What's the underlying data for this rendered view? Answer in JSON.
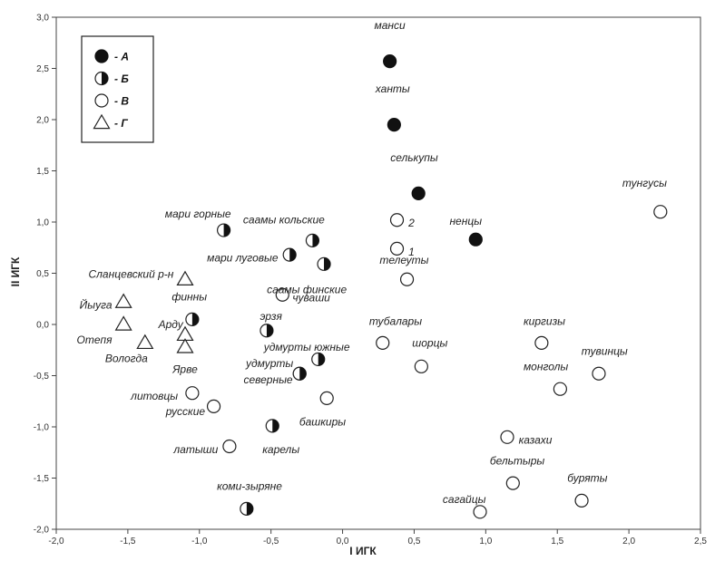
{
  "chart_data": {
    "type": "scatter",
    "xlabel": "I ИГК",
    "ylabel": "II ИГК",
    "xlim": [
      -2.0,
      2.5
    ],
    "ylim": [
      -2.0,
      3.0
    ],
    "xticks": [
      "-2,0",
      "-1,5",
      "-1,0",
      "-0,5",
      "0,0",
      "0,5",
      "1,0",
      "1,5",
      "2,0",
      "2,5"
    ],
    "yticks": [
      "-2,0",
      "-1,5",
      "-1,0",
      "-0,5",
      "0,0",
      "0,5",
      "1,0",
      "1,5",
      "2,0",
      "2,5",
      "3,0"
    ],
    "grid": false,
    "legend_position": "top-left",
    "legend": [
      {
        "marker": "filled",
        "label": "- А"
      },
      {
        "marker": "half",
        "label": "- Б"
      },
      {
        "marker": "open",
        "label": "- В"
      },
      {
        "marker": "triangle",
        "label": "- Г"
      }
    ],
    "points": [
      {
        "label": "манси",
        "x": 0.33,
        "y": 2.57,
        "marker": "filled",
        "lx": 0.0,
        "ly": 0.35,
        "anchor": "middle"
      },
      {
        "label": "ханты",
        "x": 0.36,
        "y": 1.95,
        "marker": "filled",
        "lx": -0.01,
        "ly": 0.35,
        "anchor": "middle"
      },
      {
        "label": "селькупы",
        "x": 0.53,
        "y": 1.28,
        "marker": "filled",
        "lx": -0.03,
        "ly": 0.35,
        "anchor": "middle"
      },
      {
        "label": "ненцы",
        "x": 0.93,
        "y": 0.83,
        "marker": "filled",
        "lx": -0.07,
        "ly": 0.18,
        "anchor": "middle"
      },
      {
        "label": "тунгусы",
        "x": 2.22,
        "y": 1.1,
        "marker": "open",
        "lx": -0.11,
        "ly": 0.28,
        "anchor": "middle"
      },
      {
        "label": "2",
        "x": 0.38,
        "y": 1.02,
        "marker": "open",
        "lx": 0.08,
        "ly": -0.03,
        "anchor": "start"
      },
      {
        "label": "1",
        "x": 0.38,
        "y": 0.74,
        "marker": "open",
        "lx": 0.08,
        "ly": -0.03,
        "anchor": "start"
      },
      {
        "label": "телеуты",
        "x": 0.45,
        "y": 0.44,
        "marker": "open",
        "lx": -0.02,
        "ly": 0.19,
        "anchor": "middle"
      },
      {
        "label": "мари горные",
        "x": -0.83,
        "y": 0.92,
        "marker": "half",
        "lx": -0.18,
        "ly": 0.16,
        "anchor": "middle"
      },
      {
        "label": "саамы кольские",
        "x": -0.21,
        "y": 0.82,
        "marker": "half",
        "lx": -0.2,
        "ly": 0.2,
        "anchor": "middle"
      },
      {
        "label": "мари луговые",
        "x": -0.37,
        "y": 0.68,
        "marker": "half",
        "lx": -0.08,
        "ly": -0.03,
        "anchor": "end"
      },
      {
        "label": "саамы финские",
        "x": -0.13,
        "y": 0.59,
        "marker": "half",
        "lx": -0.12,
        "ly": -0.25,
        "anchor": "middle"
      },
      {
        "label": "чуваши",
        "x": -0.42,
        "y": 0.29,
        "marker": "open",
        "lx": 0.07,
        "ly": -0.03,
        "anchor": "start"
      },
      {
        "label": "финны",
        "x": -1.05,
        "y": 0.05,
        "marker": "half",
        "lx": -0.02,
        "ly": 0.22,
        "anchor": "middle"
      },
      {
        "label": "эрзя",
        "x": -0.53,
        "y": -0.06,
        "marker": "half",
        "lx": 0.03,
        "ly": 0.14,
        "anchor": "middle"
      },
      {
        "label": "удмурты южные",
        "x": -0.17,
        "y": -0.34,
        "marker": "half",
        "lx": -0.08,
        "ly": 0.12,
        "anchor": "middle"
      },
      {
        "label": "удмурты",
        "x": -0.3,
        "y": -0.48,
        "marker": "half",
        "lx": -0.21,
        "ly": 0.1,
        "anchor": "middle"
      },
      {
        "label": "северные",
        "x": -0.3,
        "y": -0.48,
        "marker": "half",
        "lx": -0.22,
        "ly": -0.06,
        "anchor": "middle"
      },
      {
        "label": "башкиры",
        "x": -0.11,
        "y": -0.72,
        "marker": "open",
        "lx": -0.03,
        "ly": -0.23,
        "anchor": "middle"
      },
      {
        "label": "карелы",
        "x": -0.49,
        "y": -0.99,
        "marker": "half",
        "lx": 0.06,
        "ly": -0.23,
        "anchor": "middle"
      },
      {
        "label": "коми-зыряне",
        "x": -0.67,
        "y": -1.8,
        "marker": "half",
        "lx": 0.02,
        "ly": 0.22,
        "anchor": "middle"
      },
      {
        "label": "тубалары",
        "x": 0.28,
        "y": -0.18,
        "marker": "open",
        "lx": 0.09,
        "ly": 0.21,
        "anchor": "middle"
      },
      {
        "label": "шорцы",
        "x": 0.55,
        "y": -0.41,
        "marker": "open",
        "lx": 0.06,
        "ly": 0.23,
        "anchor": "middle"
      },
      {
        "label": "киргизы",
        "x": 1.39,
        "y": -0.18,
        "marker": "open",
        "lx": 0.02,
        "ly": 0.21,
        "anchor": "middle"
      },
      {
        "label": "монголы",
        "x": 1.52,
        "y": -0.63,
        "marker": "open",
        "lx": -0.1,
        "ly": 0.22,
        "anchor": "middle"
      },
      {
        "label": "тувинцы",
        "x": 1.79,
        "y": -0.48,
        "marker": "open",
        "lx": 0.04,
        "ly": 0.22,
        "anchor": "middle"
      },
      {
        "label": "казахи",
        "x": 1.15,
        "y": -1.1,
        "marker": "open",
        "lx": 0.08,
        "ly": -0.03,
        "anchor": "start"
      },
      {
        "label": "бельтыры",
        "x": 1.19,
        "y": -1.55,
        "marker": "open",
        "lx": 0.03,
        "ly": 0.22,
        "anchor": "middle"
      },
      {
        "label": "буряты",
        "x": 1.67,
        "y": -1.72,
        "marker": "open",
        "lx": 0.04,
        "ly": 0.22,
        "anchor": "middle"
      },
      {
        "label": "сагайцы",
        "x": 0.96,
        "y": -1.83,
        "marker": "open",
        "lx": -0.11,
        "ly": 0.12,
        "anchor": "middle"
      },
      {
        "label": "литовцы",
        "x": -1.05,
        "y": -0.67,
        "marker": "open",
        "lx": -0.1,
        "ly": -0.03,
        "anchor": "end"
      },
      {
        "label": "русские",
        "x": -0.9,
        "y": -0.8,
        "marker": "open",
        "lx": -0.06,
        "ly": -0.05,
        "anchor": "end"
      },
      {
        "label": "латыши",
        "x": -0.79,
        "y": -1.19,
        "marker": "open",
        "lx": -0.08,
        "ly": -0.03,
        "anchor": "end"
      },
      {
        "label": "Сланцевский р-н",
        "x": -1.1,
        "y": 0.44,
        "marker": "triangle",
        "lx": -0.08,
        "ly": 0.05,
        "anchor": "end"
      },
      {
        "label": "Йыуга",
        "x": -1.53,
        "y": 0.22,
        "marker": "triangle",
        "lx": -0.08,
        "ly": -0.03,
        "anchor": "end"
      },
      {
        "label": "Отепя",
        "x": -1.53,
        "y": 0.0,
        "marker": "triangle",
        "lx": -0.08,
        "ly": -0.15,
        "anchor": "end"
      },
      {
        "label": "Вологда",
        "x": -1.38,
        "y": -0.18,
        "marker": "triangle",
        "lx": -0.13,
        "ly": -0.15,
        "anchor": "middle"
      },
      {
        "label": "Арду",
        "x": -1.1,
        "y": -0.1,
        "marker": "triangle",
        "lx": -0.1,
        "ly": 0.1,
        "anchor": "middle"
      },
      {
        "label": "Ярве",
        "x": -1.1,
        "y": -0.22,
        "marker": "triangle",
        "lx": 0.0,
        "ly": -0.22,
        "anchor": "middle"
      }
    ]
  }
}
